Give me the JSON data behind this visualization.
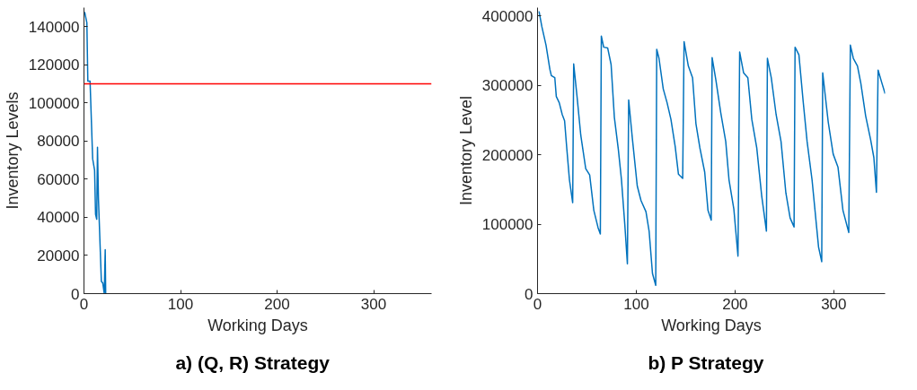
{
  "chart_data": [
    {
      "type": "line",
      "title": "a)   (Q, R) Strategy",
      "xlabel": "Working Days",
      "ylabel": "Inventory Levels",
      "grid": false,
      "xlim": [
        0,
        360
      ],
      "xticks": [
        0,
        100,
        200,
        300
      ],
      "ylim": [
        0,
        150000
      ],
      "yticks": [
        0,
        20000,
        40000,
        60000,
        80000,
        100000,
        120000,
        140000
      ],
      "series": [
        {
          "color": "#0072bd",
          "x": [
            0.7,
            3,
            4,
            6.3,
            9,
            11,
            12,
            13.2,
            14,
            15,
            18,
            19.5,
            21,
            22,
            22.5
          ],
          "values": [
            147700,
            142000,
            111400,
            111400,
            70700,
            64700,
            41600,
            39000,
            76800,
            49700,
            6500,
            5500,
            0,
            23000,
            0
          ]
        }
      ],
      "ref_lines": [
        {
          "axis": "y",
          "value": 110000,
          "color": "#ff0000"
        }
      ]
    },
    {
      "type": "line",
      "title": "b)   P Strategy",
      "xlabel": "Working Days",
      "ylabel": "Inventory Level",
      "grid": false,
      "xlim": [
        0,
        352
      ],
      "xticks": [
        0,
        100,
        200,
        300
      ],
      "ylim": [
        0,
        412000
      ],
      "yticks": [
        0,
        100000,
        200000,
        300000,
        400000
      ],
      "series": [
        {
          "color": "#0072bd",
          "x": [
            1,
            1.6,
            4.3,
            8.6,
            12.5,
            14,
            17.5,
            19,
            22,
            25,
            27.4,
            29.7,
            32.3,
            35.6,
            36.6,
            40,
            43.8,
            48.8,
            52.8,
            57,
            61.3,
            63.6,
            64.6,
            67,
            71,
            74.5,
            77.8,
            81.8,
            85,
            88.4,
            91,
            92.3,
            96,
            101,
            104.8,
            109.8,
            113,
            116.4,
            119.7,
            120.7,
            123,
            127.3,
            131.2,
            135.1,
            139.4,
            142.7,
            147,
            148.4,
            152.7,
            157,
            160.4,
            164.4,
            169.3,
            172.6,
            175.9,
            176.8,
            180.7,
            185.6,
            190.6,
            193.9,
            198.8,
            203,
            204.7,
            208.7,
            213,
            217,
            222,
            227,
            231.8,
            232.8,
            236.7,
            241.6,
            246.6,
            251.5,
            255.8,
            259.8,
            260.8,
            264.7,
            269,
            273,
            278,
            284.6,
            287.8,
            288.8,
            294.4,
            299.4,
            304.3,
            309.3,
            315.2,
            316.8,
            319.8,
            324,
            327.4,
            332.3,
            337.3,
            340.6,
            343.2,
            344.9,
            348.8,
            352
          ],
          "values": [
            406000,
            406000,
            385000,
            358000,
            323000,
            314000,
            311000,
            284000,
            275000,
            258000,
            249000,
            208000,
            164000,
            131000,
            331000,
            284000,
            228000,
            180000,
            171000,
            120000,
            95000,
            86000,
            371000,
            355000,
            354000,
            330000,
            254000,
            208000,
            164000,
            99000,
            43000,
            279000,
            224000,
            155000,
            134000,
            118000,
            90000,
            29000,
            12000,
            352000,
            339000,
            295000,
            275000,
            251000,
            212000,
            172000,
            166000,
            363000,
            328000,
            311000,
            245000,
            210000,
            175000,
            120000,
            106000,
            340000,
            307000,
            260000,
            219000,
            164000,
            122000,
            54000,
            348000,
            318000,
            311000,
            251000,
            210000,
            141000,
            90000,
            339000,
            311000,
            258000,
            219000,
            145000,
            109000,
            96000,
            355000,
            344000,
            277000,
            219000,
            164000,
            67000,
            46000,
            318000,
            247000,
            201000,
            182000,
            120000,
            88000,
            358000,
            339000,
            328000,
            303000,
            256000,
            222000,
            196000,
            146000,
            322000,
            303000,
            288000
          ]
        }
      ]
    }
  ]
}
